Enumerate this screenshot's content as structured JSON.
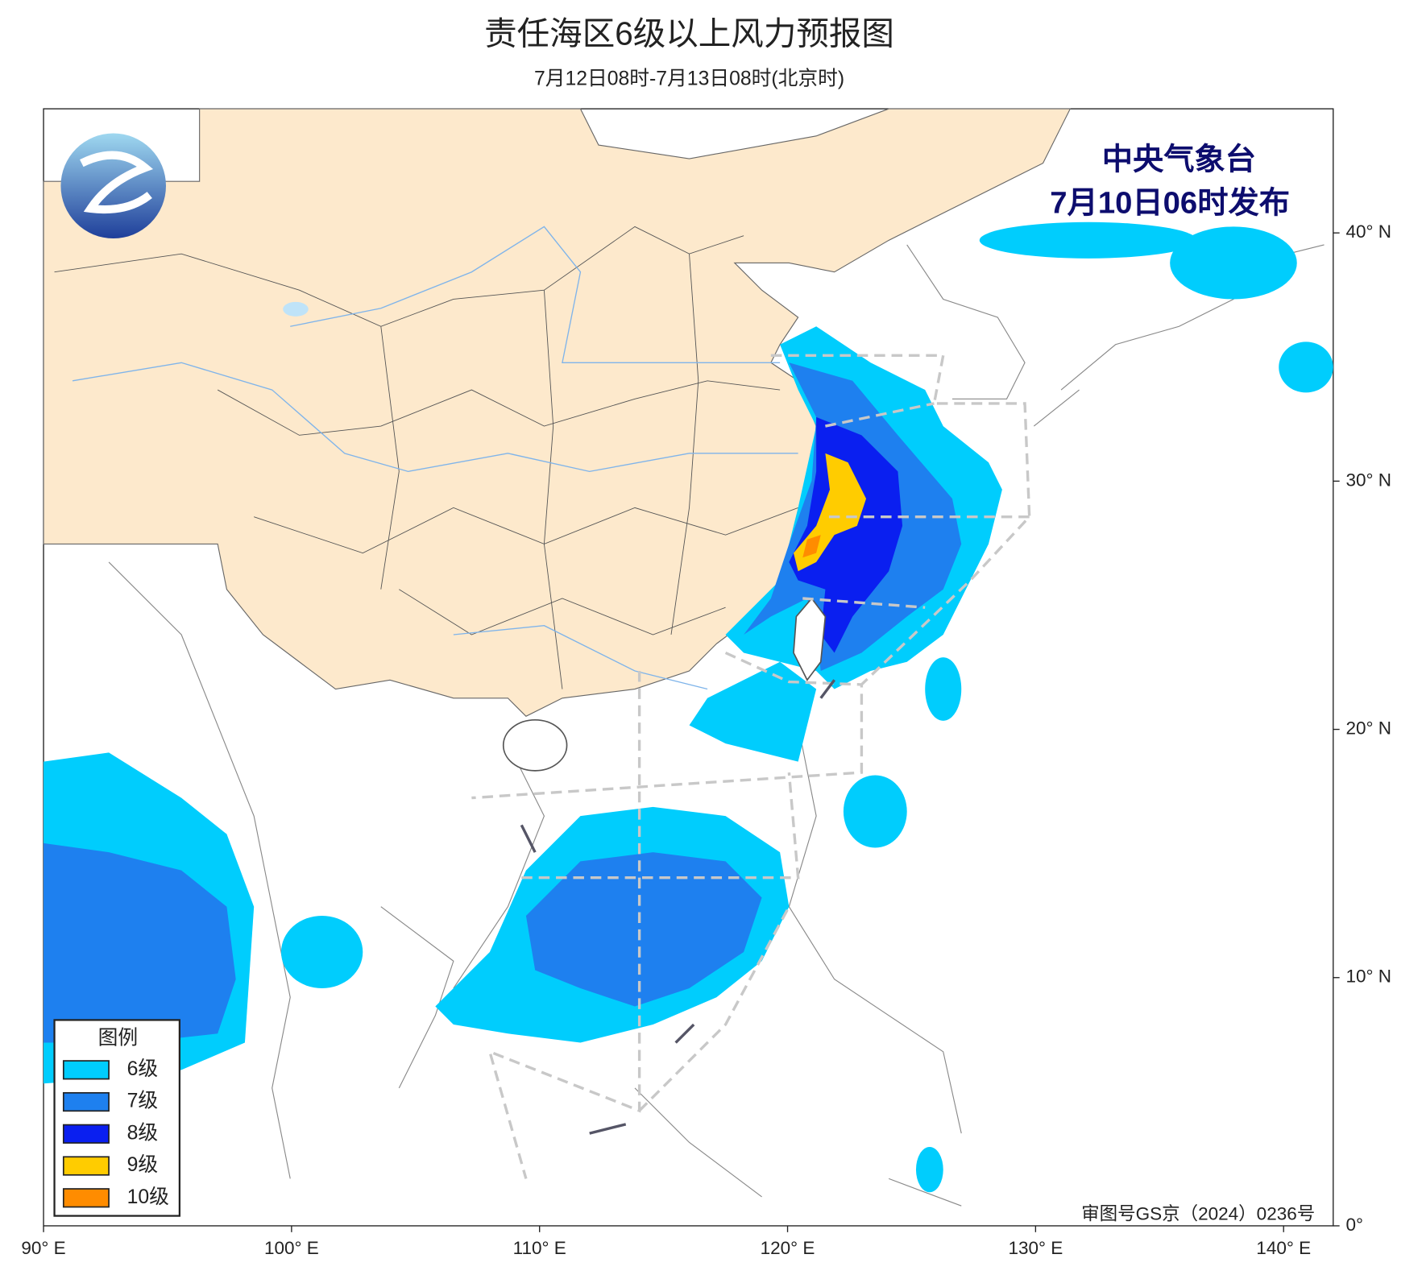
{
  "header": {
    "title": "责任海区6级以上风力预报图",
    "subtitle": "7月12日08时-7月13日08时(北京时)"
  },
  "issuer": {
    "name": "中央气象台",
    "date": "7月10日06时发布"
  },
  "legend": {
    "title": "图例",
    "items": [
      {
        "label": "6级",
        "color": "#00cdfd"
      },
      {
        "label": "7级",
        "color": "#1e80ef"
      },
      {
        "label": "8级",
        "color": "#0a1ff0"
      },
      {
        "label": "9级",
        "color": "#ffcc00"
      },
      {
        "label": "10级",
        "color": "#ff8c00"
      }
    ]
  },
  "map": {
    "xlim": [
      90,
      142
    ],
    "ylim": [
      0,
      45
    ],
    "xticks": [
      {
        "value": 90,
        "label": "90° E"
      },
      {
        "value": 100,
        "label": "100° E"
      },
      {
        "value": 110,
        "label": "110° E"
      },
      {
        "value": 120,
        "label": "120° E"
      },
      {
        "value": 130,
        "label": "130° E"
      },
      {
        "value": 140,
        "label": "140° E"
      }
    ],
    "yticks": [
      {
        "value": 0,
        "label": "0°"
      },
      {
        "value": 10,
        "label": "10° N"
      },
      {
        "value": 20,
        "label": "20° N"
      },
      {
        "value": 30,
        "label": "30° N"
      },
      {
        "value": 40,
        "label": "40° N"
      }
    ]
  },
  "approval": "审图号GS京（2024）0236号"
}
